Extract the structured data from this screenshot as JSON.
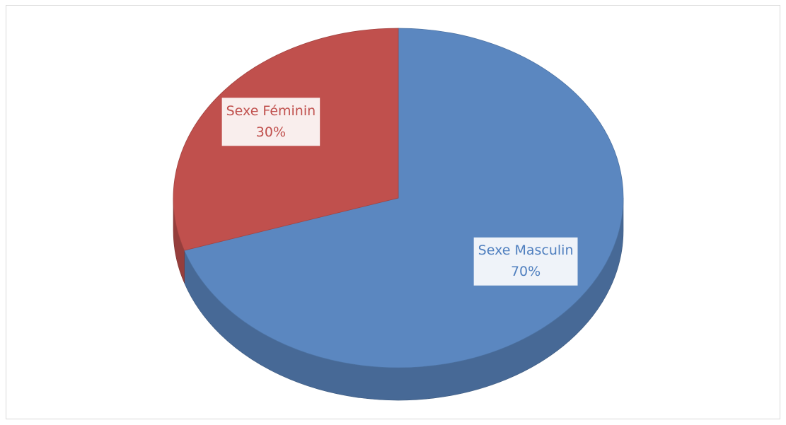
{
  "chart_data": {
    "type": "pie",
    "categories": [
      "Sexe Masculin",
      "Sexe Féminin"
    ],
    "values": [
      70,
      30
    ],
    "value_labels": [
      "70%",
      "30%"
    ],
    "colors": [
      "#5b87c0",
      "#c0504d"
    ],
    "label_colors": [
      "#4f7fbf",
      "#c0504d"
    ]
  }
}
